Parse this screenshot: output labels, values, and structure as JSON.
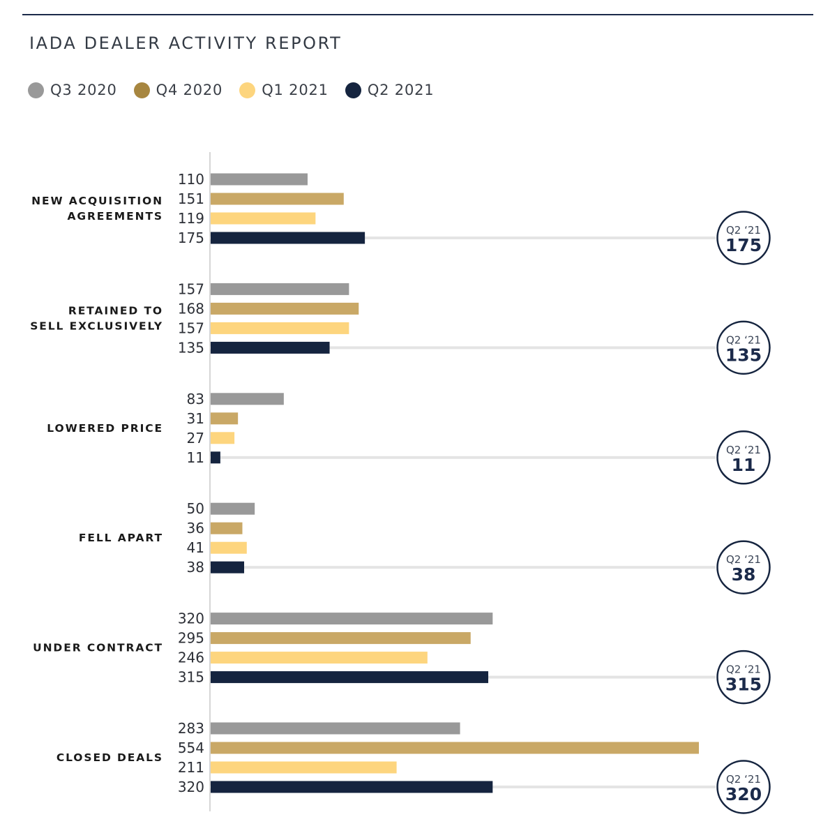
{
  "title": "IADA DEALER ACTIVITY REPORT",
  "legend": [
    {
      "label": "Q3 2020",
      "color": "#999999"
    },
    {
      "label": "Q4 2020",
      "color": "#a78640"
    },
    {
      "label": "Q1 2021",
      "color": "#fdd57e"
    },
    {
      "label": "Q2 2021",
      "color": "#15243f"
    }
  ],
  "chart_data": {
    "type": "bar",
    "orientation": "horizontal",
    "title": "IADA DEALER ACTIVITY REPORT",
    "categories": [
      [
        "NEW ACQUISITION",
        "AGREEMENTS"
      ],
      [
        "RETAINED TO",
        "SELL EXCLUSIVELY"
      ],
      [
        "LOWERED PRICE"
      ],
      [
        "FELL APART"
      ],
      [
        "UNDER CONTRACT"
      ],
      [
        "CLOSED DEALS"
      ]
    ],
    "series": [
      {
        "name": "Q3 2020",
        "color": "#999999",
        "values": [
          110,
          157,
          83,
          50,
          320,
          283
        ]
      },
      {
        "name": "Q4 2020",
        "color": "#c9a866",
        "values": [
          151,
          168,
          31,
          36,
          295,
          554
        ]
      },
      {
        "name": "Q1 2021",
        "color": "#fdd57e",
        "values": [
          119,
          157,
          27,
          41,
          246,
          211
        ]
      },
      {
        "name": "Q2 2021",
        "color": "#15243f",
        "values": [
          175,
          135,
          11,
          38,
          315,
          320
        ]
      }
    ],
    "highlight_series": "Q2 2021",
    "badge_label": "Q2 ‘21",
    "xlim": [
      0,
      554
    ],
    "legend_position": "top-left",
    "grid": false
  }
}
